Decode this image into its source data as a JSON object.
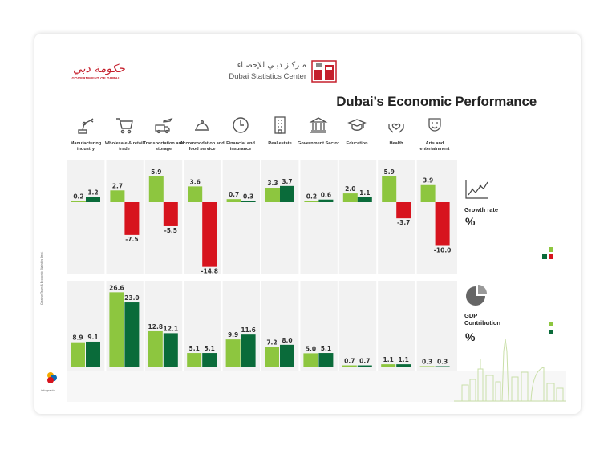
{
  "header": {
    "gov_logo_calligraphy": "حكومة دبي",
    "gov_logo_text": "GOVERNMENT OF DUBAI",
    "dsc_arabic": "مـركـز دبـي للإحصـاء",
    "dsc_english": "Dubai Statistics Center",
    "title": "Dubai’s Economic Performance"
  },
  "sectors": [
    {
      "label": "Manufacturing industry",
      "icon": "robot-arm-icon"
    },
    {
      "label": "Wholesale & retail trade",
      "icon": "shopping-cart-icon"
    },
    {
      "label": "Transportation and storage",
      "icon": "truck-plane-icon"
    },
    {
      "label": "Accommodation and food service",
      "icon": "cloche-icon"
    },
    {
      "label": "Financial and insurance",
      "icon": "clock-icon"
    },
    {
      "label": "Real estate",
      "icon": "building-icon"
    },
    {
      "label": "Government Sector",
      "icon": "government-building-icon"
    },
    {
      "label": "Education",
      "icon": "graduation-cap-icon"
    },
    {
      "label": "Health",
      "icon": "heart-hands-icon"
    },
    {
      "label": "Arts and entertainment",
      "icon": "theater-mask-icon"
    }
  ],
  "growth_panel": {
    "label": "Growth rate",
    "unit": "%",
    "icon": "line-chart-icon"
  },
  "gdp_panel": {
    "label": "GDP Contribution",
    "unit": "%",
    "icon": "pie-chart-icon"
  },
  "source_note": "Creative Team & Economic Statistics Dept.",
  "footer_brand": "infograph",
  "colors": {
    "light_green": "#8dc63f",
    "dark_green": "#0a6b3a",
    "red": "#d7141e",
    "panel": "#f2f2f2"
  },
  "chart_data": [
    {
      "type": "bar",
      "title": "Growth rate",
      "ylabel": "%",
      "categories": [
        "Manufacturing industry",
        "Wholesale & retail trade",
        "Transportation and storage",
        "Accommodation and food service",
        "Financial and insurance",
        "Real estate",
        "Government Sector",
        "Education",
        "Health",
        "Arts and entertainment"
      ],
      "series": [
        {
          "values": [
            0.2,
            2.7,
            5.9,
            3.6,
            0.7,
            3.3,
            0.2,
            2.0,
            5.9,
            3.9
          ]
        },
        {
          "values": [
            1.2,
            -7.5,
            -5.5,
            -14.8,
            0.3,
            3.7,
            0.6,
            1.1,
            -3.7,
            -10.0
          ]
        }
      ],
      "labels": [
        [
          "0.2",
          "2.7",
          "5.9",
          "3.6",
          "0.7",
          "3.3",
          "0.2",
          "2.0",
          "5.9",
          "3.9"
        ],
        [
          "1.2",
          "-7.5",
          "-5.5",
          "-14.8",
          "0.3",
          "3.7",
          "0.6",
          "1.1",
          "-3.7",
          "-10.0"
        ]
      ]
    },
    {
      "type": "bar",
      "title": "GDP Contribution",
      "ylabel": "%",
      "categories": [
        "Manufacturing industry",
        "Wholesale & retail trade",
        "Transportation and storage",
        "Accommodation and food service",
        "Financial and insurance",
        "Real estate",
        "Government Sector",
        "Education",
        "Health",
        "Arts and entertainment"
      ],
      "series": [
        {
          "values": [
            8.9,
            26.6,
            12.8,
            5.1,
            9.9,
            7.2,
            5.0,
            0.7,
            1.1,
            0.3
          ]
        },
        {
          "values": [
            9.1,
            23.0,
            12.1,
            5.1,
            11.6,
            8.0,
            5.1,
            0.7,
            1.1,
            0.3
          ]
        }
      ],
      "labels": [
        [
          "8.9",
          "26.6",
          "12.8",
          "5.1",
          "9.9",
          "7.2",
          "5.0",
          "0.7",
          "1.1",
          "0.3"
        ],
        [
          "9.1",
          "23.0",
          "12.1",
          "5.1",
          "11.6",
          "8.0",
          "5.1",
          "0.7",
          "1.1",
          "0.3"
        ]
      ]
    }
  ]
}
